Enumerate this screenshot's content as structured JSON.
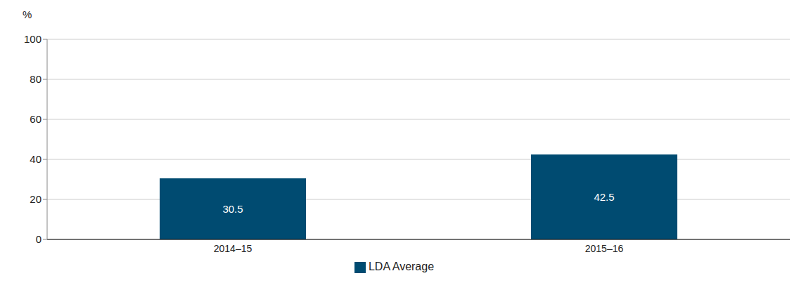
{
  "chart_data": {
    "type": "bar",
    "y_label": "%",
    "categories": [
      "2014–15",
      "2015–16"
    ],
    "series": [
      {
        "name": "LDA Average",
        "color": "#004b71",
        "values": [
          30.5,
          42.5
        ]
      }
    ],
    "ylim": [
      0,
      100
    ],
    "yticks": [
      0,
      20,
      40,
      60,
      80,
      100
    ],
    "grid": true,
    "legend": "bottom",
    "data_labels": true
  }
}
